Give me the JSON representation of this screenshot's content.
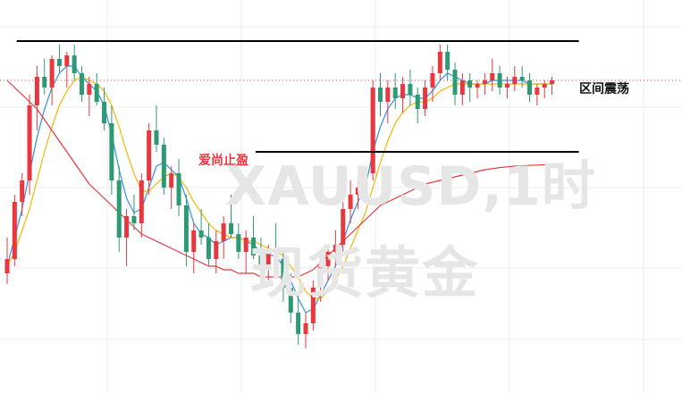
{
  "watermark": {
    "symbol": "XAUUSD,1时",
    "name": "现货黄金"
  },
  "annotations": {
    "brand": "爱尚止盈",
    "range": "区间震荡"
  },
  "colors": {
    "background": "#ffffff",
    "bull": "#e8373e",
    "bear": "#2e9a73",
    "ma_fast": "#2f8fe6",
    "ma_mid": "#f2b705",
    "ma_slow": "#e8373e",
    "levels": "#000000",
    "current_price_line": "#e8373e",
    "grid": "#ececec"
  },
  "chart_data": {
    "type": "candlestick",
    "title": "",
    "xlabel": "",
    "ylabel": "",
    "grid": true,
    "x_axis_labels": [],
    "y_axis_labels": [],
    "series": [
      {
        "type": "candlestick",
        "values": [
          [
            0.08,
            0.18,
            0.05,
            0.12
          ],
          [
            0.12,
            0.3,
            0.1,
            0.28
          ],
          [
            0.28,
            0.36,
            0.24,
            0.34
          ],
          [
            0.34,
            0.58,
            0.3,
            0.55
          ],
          [
            0.55,
            0.66,
            0.48,
            0.63
          ],
          [
            0.63,
            0.68,
            0.58,
            0.6
          ],
          [
            0.6,
            0.69,
            0.55,
            0.68
          ],
          [
            0.68,
            0.72,
            0.64,
            0.66
          ],
          [
            0.66,
            0.7,
            0.6,
            0.69
          ],
          [
            0.69,
            0.72,
            0.62,
            0.64
          ],
          [
            0.64,
            0.66,
            0.56,
            0.58
          ],
          [
            0.58,
            0.63,
            0.52,
            0.61
          ],
          [
            0.61,
            0.64,
            0.55,
            0.56
          ],
          [
            0.56,
            0.6,
            0.48,
            0.5
          ],
          [
            0.5,
            0.55,
            0.3,
            0.34
          ],
          [
            0.34,
            0.38,
            0.14,
            0.18
          ],
          [
            0.18,
            0.26,
            0.1,
            0.24
          ],
          [
            0.24,
            0.3,
            0.2,
            0.22
          ],
          [
            0.22,
            0.36,
            0.18,
            0.34
          ],
          [
            0.34,
            0.5,
            0.3,
            0.48
          ],
          [
            0.48,
            0.55,
            0.42,
            0.44
          ],
          [
            0.44,
            0.46,
            0.3,
            0.32
          ],
          [
            0.32,
            0.38,
            0.26,
            0.36
          ],
          [
            0.36,
            0.4,
            0.24,
            0.27
          ],
          [
            0.27,
            0.3,
            0.1,
            0.14
          ],
          [
            0.14,
            0.22,
            0.08,
            0.2
          ],
          [
            0.2,
            0.26,
            0.16,
            0.18
          ],
          [
            0.18,
            0.22,
            0.1,
            0.12
          ],
          [
            0.12,
            0.2,
            0.08,
            0.17
          ],
          [
            0.17,
            0.24,
            0.12,
            0.22
          ],
          [
            0.22,
            0.3,
            0.18,
            0.19
          ],
          [
            0.19,
            0.22,
            0.12,
            0.14
          ],
          [
            0.14,
            0.2,
            0.08,
            0.18
          ],
          [
            0.18,
            0.24,
            0.12,
            0.13
          ],
          [
            0.13,
            0.18,
            0.08,
            0.1
          ],
          [
            0.1,
            0.16,
            0.06,
            0.15
          ],
          [
            0.15,
            0.22,
            0.1,
            0.12
          ],
          [
            0.12,
            0.15,
            0.0,
            0.04
          ],
          [
            0.04,
            0.08,
            -0.06,
            -0.03
          ],
          [
            -0.03,
            0.02,
            -0.12,
            -0.09
          ],
          [
            -0.09,
            -0.03,
            -0.13,
            -0.06
          ],
          [
            -0.06,
            0.06,
            -0.08,
            0.04
          ],
          [
            0.04,
            0.12,
            0.0,
            0.1
          ],
          [
            0.1,
            0.16,
            0.06,
            0.14
          ],
          [
            0.14,
            0.2,
            0.1,
            0.16
          ],
          [
            0.16,
            0.28,
            0.13,
            0.26
          ],
          [
            0.26,
            0.34,
            0.22,
            0.3
          ],
          [
            0.3,
            0.34,
            0.26,
            0.32
          ],
          [
            0.32,
            0.38,
            0.28,
            0.36
          ],
          [
            0.36,
            0.62,
            0.34,
            0.6
          ],
          [
            0.6,
            0.64,
            0.52,
            0.56
          ],
          [
            0.56,
            0.62,
            0.5,
            0.6
          ],
          [
            0.6,
            0.64,
            0.54,
            0.57
          ],
          [
            0.57,
            0.63,
            0.53,
            0.61
          ],
          [
            0.61,
            0.65,
            0.55,
            0.58
          ],
          [
            0.58,
            0.6,
            0.5,
            0.54
          ],
          [
            0.54,
            0.62,
            0.52,
            0.6
          ],
          [
            0.6,
            0.66,
            0.56,
            0.64
          ],
          [
            0.64,
            0.72,
            0.62,
            0.7
          ],
          [
            0.7,
            0.72,
            0.62,
            0.65
          ],
          [
            0.65,
            0.67,
            0.55,
            0.58
          ],
          [
            0.58,
            0.64,
            0.55,
            0.62
          ],
          [
            0.62,
            0.64,
            0.56,
            0.6
          ],
          [
            0.6,
            0.62,
            0.57,
            0.61
          ],
          [
            0.61,
            0.64,
            0.58,
            0.62
          ],
          [
            0.62,
            0.68,
            0.59,
            0.64
          ],
          [
            0.64,
            0.66,
            0.58,
            0.6
          ],
          [
            0.6,
            0.63,
            0.57,
            0.61
          ],
          [
            0.61,
            0.66,
            0.59,
            0.63
          ],
          [
            0.63,
            0.66,
            0.6,
            0.62
          ],
          [
            0.62,
            0.64,
            0.56,
            0.58
          ],
          [
            0.58,
            0.61,
            0.55,
            0.6
          ],
          [
            0.6,
            0.62,
            0.57,
            0.61
          ],
          [
            0.61,
            0.63,
            0.58,
            0.62
          ]
        ]
      },
      {
        "type": "line",
        "values": [
          0.1,
          0.18,
          0.26,
          0.36,
          0.46,
          0.54,
          0.6,
          0.64,
          0.66,
          0.66,
          0.63,
          0.61,
          0.59,
          0.55,
          0.47,
          0.37,
          0.29,
          0.25,
          0.26,
          0.32,
          0.38,
          0.39,
          0.37,
          0.35,
          0.29,
          0.22,
          0.19,
          0.18,
          0.16,
          0.17,
          0.18,
          0.18,
          0.17,
          0.16,
          0.14,
          0.13,
          0.13,
          0.1,
          0.06,
          0.01,
          -0.03,
          -0.02,
          0.02,
          0.06,
          0.1,
          0.17,
          0.23,
          0.28,
          0.32,
          0.42,
          0.49,
          0.54,
          0.57,
          0.58,
          0.58,
          0.57,
          0.57,
          0.59,
          0.62,
          0.64,
          0.63,
          0.62,
          0.61,
          0.61,
          0.61,
          0.62,
          0.62,
          0.62,
          0.62,
          0.62,
          0.61,
          0.61,
          0.61,
          0.61
        ]
      },
      {
        "type": "line",
        "values": [
          0.1,
          0.14,
          0.2,
          0.26,
          0.34,
          0.42,
          0.49,
          0.55,
          0.59,
          0.62,
          0.63,
          0.62,
          0.61,
          0.59,
          0.55,
          0.49,
          0.42,
          0.36,
          0.31,
          0.31,
          0.33,
          0.35,
          0.36,
          0.35,
          0.32,
          0.28,
          0.25,
          0.22,
          0.2,
          0.19,
          0.18,
          0.18,
          0.17,
          0.17,
          0.16,
          0.15,
          0.14,
          0.13,
          0.1,
          0.07,
          0.03,
          0.01,
          0.01,
          0.03,
          0.06,
          0.1,
          0.15,
          0.2,
          0.25,
          0.32,
          0.39,
          0.45,
          0.5,
          0.53,
          0.55,
          0.56,
          0.56,
          0.57,
          0.59,
          0.6,
          0.61,
          0.61,
          0.61,
          0.61,
          0.61,
          0.61,
          0.61,
          0.61,
          0.61,
          0.61,
          0.61,
          0.61,
          0.61,
          0.61
        ]
      },
      {
        "type": "line",
        "values": [
          0.62,
          0.6,
          0.58,
          0.56,
          0.54,
          0.51,
          0.48,
          0.45,
          0.42,
          0.39,
          0.36,
          0.33,
          0.31,
          0.29,
          0.27,
          0.25,
          0.23,
          0.21,
          0.19,
          0.18,
          0.17,
          0.16,
          0.15,
          0.14,
          0.13,
          0.12,
          0.11,
          0.1,
          0.1,
          0.09,
          0.09,
          0.08,
          0.08,
          0.08,
          0.07,
          0.07,
          0.07,
          0.07,
          0.07,
          0.07,
          0.08,
          0.09,
          0.11,
          0.13,
          0.15,
          0.17,
          0.19,
          0.21,
          0.23,
          0.25,
          0.27,
          0.28,
          0.29,
          0.3,
          0.31,
          0.32,
          0.33,
          0.335,
          0.34,
          0.345,
          0.35,
          0.355,
          0.36,
          0.365,
          0.37,
          0.373,
          0.376,
          0.378,
          0.38,
          0.381,
          0.382,
          0.383,
          0.384,
          0.387
        ]
      }
    ],
    "levels": [
      {
        "type": "horizontal_line",
        "value": 0.73,
        "from_index": 2,
        "to_index": 73
      },
      {
        "type": "horizontal_line",
        "value": 0.42,
        "from_index": 34,
        "to_index": 73
      }
    ]
  }
}
